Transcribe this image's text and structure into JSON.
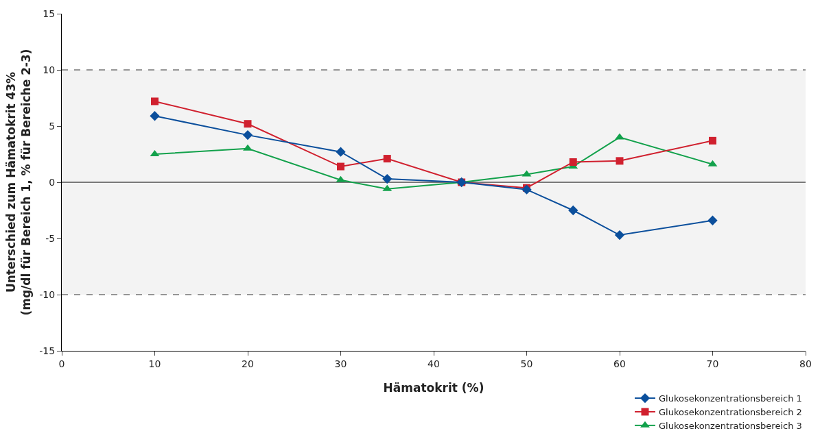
{
  "chart_data": {
    "type": "line",
    "xlabel": "Hämatokrit (%)",
    "ylabel": "Unterschied zum Hämatokrit 43%\n(mg/dl für Bereich 1, % für Bereiche 2-3)",
    "x": [
      10,
      20,
      30,
      35,
      43,
      50,
      55,
      60,
      70
    ],
    "series": [
      {
        "name": "Glukosekonzentrationsbereich 1",
        "color": "#0b4f9c",
        "marker": "diamond",
        "values": [
          5.9,
          4.2,
          2.7,
          0.3,
          0,
          -0.65,
          -2.5,
          -4.7,
          -3.4
        ]
      },
      {
        "name": "Glukosekonzentrationsbereich 2",
        "color": "#d0202e",
        "marker": "square",
        "values": [
          7.2,
          5.2,
          1.4,
          2.1,
          0,
          -0.5,
          1.8,
          1.9,
          3.7
        ]
      },
      {
        "name": "Glukosekonzentrationsbereich 3",
        "color": "#12a14b",
        "marker": "triangle",
        "values": [
          2.5,
          3.0,
          0.2,
          -0.6,
          0,
          0.7,
          1.4,
          4.0,
          1.6
        ]
      }
    ],
    "xlim": [
      0,
      80
    ],
    "xticks": [
      0,
      10,
      20,
      30,
      40,
      50,
      60,
      70,
      80
    ],
    "ylim": [
      -15,
      15
    ],
    "yticks": [
      -15,
      -10,
      -5,
      0,
      5,
      10,
      15
    ],
    "bands": [
      {
        "axis": "y",
        "from": -10,
        "to": 10,
        "color": "#f3f3f3"
      }
    ],
    "ref_lines": [
      {
        "axis": "y",
        "value": -10,
        "color": "#333333",
        "line_style": "dashed"
      },
      {
        "axis": "y",
        "value": 10,
        "color": "#333333",
        "line_style": "dashed"
      },
      {
        "axis": "y",
        "value": 0,
        "color": "#000000",
        "line_style": "solid"
      }
    ],
    "grid": false,
    "legend": "bottom right",
    "line_style": "solid"
  }
}
